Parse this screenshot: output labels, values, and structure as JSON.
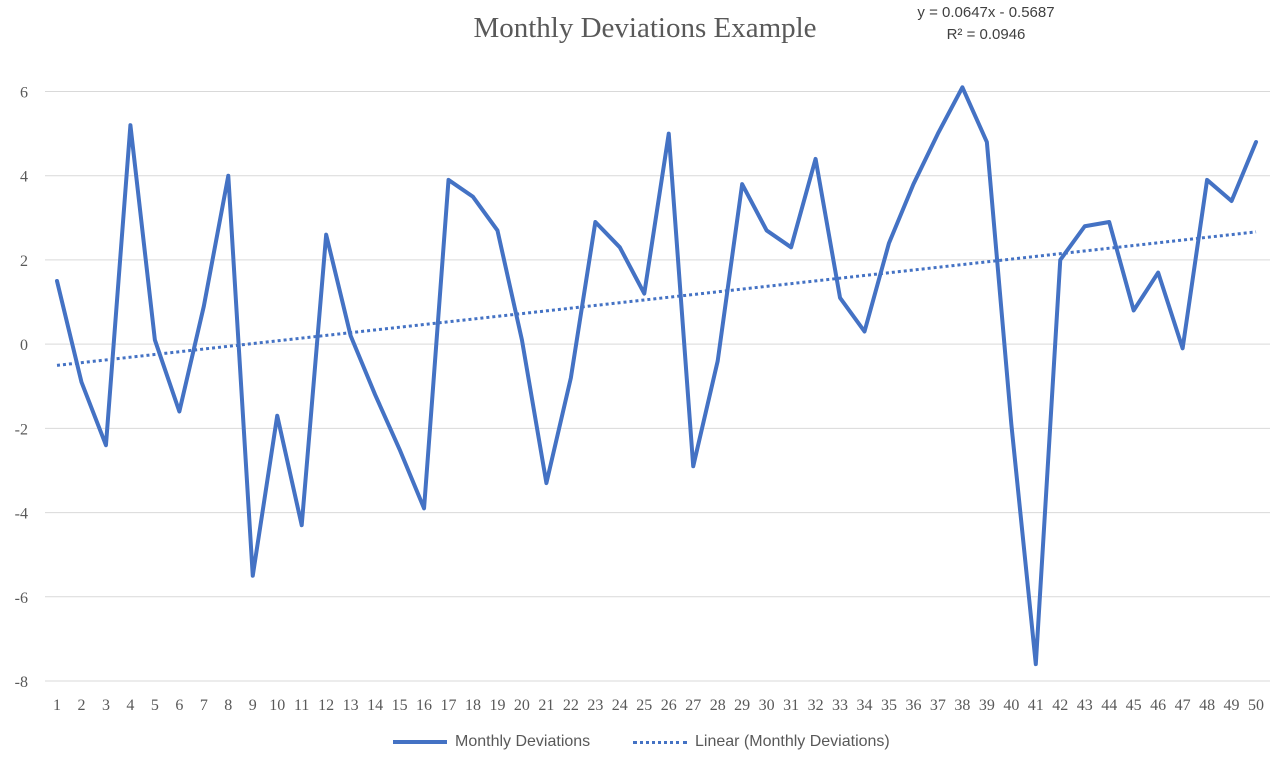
{
  "chart_data": {
    "type": "line",
    "title": "Monthly Deviations Example",
    "xlabel": "",
    "ylabel": "",
    "x": [
      1,
      2,
      3,
      4,
      5,
      6,
      7,
      8,
      9,
      10,
      11,
      12,
      13,
      14,
      15,
      16,
      17,
      18,
      19,
      20,
      21,
      22,
      23,
      24,
      25,
      26,
      27,
      28,
      29,
      30,
      31,
      32,
      33,
      34,
      35,
      36,
      37,
      38,
      39,
      40,
      41,
      42,
      43,
      44,
      45,
      46,
      47,
      48,
      49,
      50
    ],
    "ylim": [
      -8,
      6
    ],
    "yticks": [
      6,
      4,
      2,
      0,
      -2,
      -4,
      -6,
      -8
    ],
    "grid": true,
    "legend_position": "bottom",
    "series": [
      {
        "name": "Monthly Deviations",
        "color": "#4472C4",
        "style": "solid",
        "values": [
          1.5,
          -0.9,
          -2.4,
          5.2,
          0.1,
          -1.6,
          0.9,
          4.0,
          -5.5,
          -1.7,
          -4.3,
          2.6,
          0.2,
          -1.2,
          -2.5,
          -3.9,
          3.9,
          3.5,
          2.7,
          0.1,
          -3.3,
          -0.8,
          2.9,
          2.3,
          1.2,
          5.0,
          -2.9,
          -0.4,
          3.8,
          2.7,
          2.3,
          4.4,
          1.1,
          0.3,
          2.4,
          3.8,
          5.0,
          6.1,
          4.8,
          -1.9,
          -7.6,
          2.0,
          2.8,
          2.9,
          0.8,
          1.7,
          -0.1,
          3.9,
          3.4,
          4.8
        ]
      },
      {
        "name": "Linear (Monthly Deviations)",
        "color": "#4472C4",
        "style": "dotted",
        "trendline": {
          "slope": 0.0647,
          "intercept": -0.5687
        }
      }
    ],
    "annotations": {
      "equation": "y = 0.0647x - 0.5687",
      "r_squared": "R² = 0.0946"
    }
  }
}
